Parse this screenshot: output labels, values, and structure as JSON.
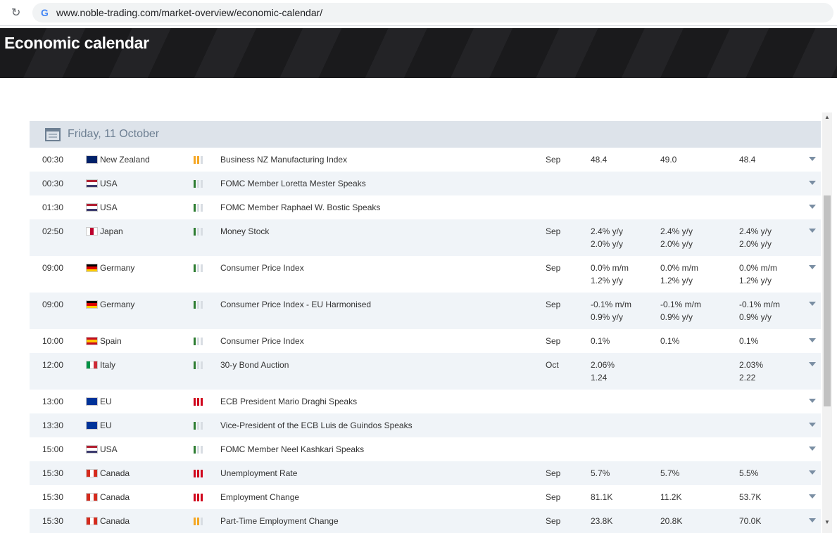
{
  "browser": {
    "url": "www.noble-trading.com/market-overview/economic-calendar/"
  },
  "header": {
    "title": "Economic calendar"
  },
  "calendar": {
    "date": "Friday, 11 October",
    "rows": [
      {
        "time": "00:30",
        "country": "New Zealand",
        "flag": {
          "colors": [
            "#012169"
          ],
          "dir": "h"
        },
        "importance": {
          "level": 2,
          "color": "#f5a623"
        },
        "event": "Business NZ Manufacturing Index",
        "period": "Sep",
        "actual": [
          "48.4"
        ],
        "forecast": [
          "49.0"
        ],
        "previous": [
          "48.4"
        ]
      },
      {
        "time": "00:30",
        "country": "USA",
        "flag": {
          "colors": [
            "#b22234",
            "#ffffff",
            "#3c3b6e"
          ],
          "dir": "h"
        },
        "importance": {
          "level": 1,
          "color": "#2e7d32"
        },
        "event": "FOMC Member Loretta Mester Speaks",
        "period": null,
        "actual": [],
        "forecast": [],
        "previous": []
      },
      {
        "time": "01:30",
        "country": "USA",
        "flag": {
          "colors": [
            "#b22234",
            "#ffffff",
            "#3c3b6e"
          ],
          "dir": "h"
        },
        "importance": {
          "level": 1,
          "color": "#2e7d32"
        },
        "event": "FOMC Member Raphael W. Bostic Speaks",
        "period": null,
        "actual": [],
        "forecast": [],
        "previous": []
      },
      {
        "time": "02:50",
        "country": "Japan",
        "flag": {
          "colors": [
            "#ffffff",
            "#bc002d",
            "#ffffff"
          ],
          "dir": "v"
        },
        "importance": {
          "level": 1,
          "color": "#2e7d32"
        },
        "event": "Money Stock",
        "period": "Sep",
        "actual": [
          "2.4% y/y",
          "2.0% y/y"
        ],
        "forecast": [
          "2.4% y/y",
          "2.0% y/y"
        ],
        "previous": [
          "2.4% y/y",
          "2.0% y/y"
        ]
      },
      {
        "time": "09:00",
        "country": "Germany",
        "flag": {
          "colors": [
            "#000000",
            "#dd0000",
            "#ffce00"
          ],
          "dir": "h"
        },
        "importance": {
          "level": 1,
          "color": "#2e7d32"
        },
        "event": "Consumer Price Index",
        "period": "Sep",
        "actual": [
          "0.0% m/m",
          "1.2% y/y"
        ],
        "forecast": [
          "0.0% m/m",
          "1.2% y/y"
        ],
        "previous": [
          "0.0% m/m",
          "1.2% y/y"
        ]
      },
      {
        "time": "09:00",
        "country": "Germany",
        "flag": {
          "colors": [
            "#000000",
            "#dd0000",
            "#ffce00"
          ],
          "dir": "h"
        },
        "importance": {
          "level": 1,
          "color": "#2e7d32"
        },
        "event": "Consumer Price Index - EU Harmonised",
        "period": "Sep",
        "actual": [
          "-0.1% m/m",
          "0.9% y/y"
        ],
        "forecast": [
          "-0.1% m/m",
          "0.9% y/y"
        ],
        "previous": [
          "-0.1% m/m",
          "0.9% y/y"
        ]
      },
      {
        "time": "10:00",
        "country": "Spain",
        "flag": {
          "colors": [
            "#c60b1e",
            "#ffc400",
            "#c60b1e"
          ],
          "dir": "h"
        },
        "importance": {
          "level": 1,
          "color": "#2e7d32"
        },
        "event": "Consumer Price Index",
        "period": "Sep",
        "actual": [
          "0.1%"
        ],
        "forecast": [
          "0.1%"
        ],
        "previous": [
          "0.1%"
        ]
      },
      {
        "time": "12:00",
        "country": "Italy",
        "flag": {
          "colors": [
            "#009246",
            "#ffffff",
            "#ce2b37"
          ],
          "dir": "v"
        },
        "importance": {
          "level": 1,
          "color": "#2e7d32"
        },
        "event": "30-y Bond Auction",
        "period": "Oct",
        "actual": [
          "2.06%",
          "1.24"
        ],
        "forecast": [],
        "previous": [
          "2.03%",
          "2.22"
        ]
      },
      {
        "time": "13:00",
        "country": "EU",
        "flag": {
          "colors": [
            "#003399"
          ],
          "dir": "h"
        },
        "importance": {
          "level": 3,
          "color": "#d0021b"
        },
        "event": "ECB President Mario Draghi Speaks",
        "period": null,
        "actual": [],
        "forecast": [],
        "previous": []
      },
      {
        "time": "13:30",
        "country": "EU",
        "flag": {
          "colors": [
            "#003399"
          ],
          "dir": "h"
        },
        "importance": {
          "level": 1,
          "color": "#2e7d32"
        },
        "event": "Vice-President of the ECB Luis de Guindos Speaks",
        "period": null,
        "actual": [],
        "forecast": [],
        "previous": []
      },
      {
        "time": "15:00",
        "country": "USA",
        "flag": {
          "colors": [
            "#b22234",
            "#ffffff",
            "#3c3b6e"
          ],
          "dir": "h"
        },
        "importance": {
          "level": 1,
          "color": "#2e7d32"
        },
        "event": "FOMC Member Neel Kashkari Speaks",
        "period": null,
        "actual": [],
        "forecast": [],
        "previous": []
      },
      {
        "time": "15:30",
        "country": "Canada",
        "flag": {
          "colors": [
            "#d52b1e",
            "#ffffff",
            "#d52b1e"
          ],
          "dir": "v"
        },
        "importance": {
          "level": 3,
          "color": "#d0021b"
        },
        "event": "Unemployment Rate",
        "period": "Sep",
        "actual": [
          "5.7%"
        ],
        "forecast": [
          "5.7%"
        ],
        "previous": [
          "5.5%"
        ]
      },
      {
        "time": "15:30",
        "country": "Canada",
        "flag": {
          "colors": [
            "#d52b1e",
            "#ffffff",
            "#d52b1e"
          ],
          "dir": "v"
        },
        "importance": {
          "level": 3,
          "color": "#d0021b"
        },
        "event": "Employment Change",
        "period": "Sep",
        "actual": [
          "81.1K"
        ],
        "forecast": [
          "11.2K"
        ],
        "previous": [
          "53.7K"
        ]
      },
      {
        "time": "15:30",
        "country": "Canada",
        "flag": {
          "colors": [
            "#d52b1e",
            "#ffffff",
            "#d52b1e"
          ],
          "dir": "v"
        },
        "importance": {
          "level": 2,
          "color": "#f5a623"
        },
        "event": "Part-Time Employment Change",
        "period": "Sep",
        "actual": [
          "23.8K"
        ],
        "forecast": [
          "20.8K"
        ],
        "previous": [
          "70.0K"
        ]
      }
    ]
  }
}
